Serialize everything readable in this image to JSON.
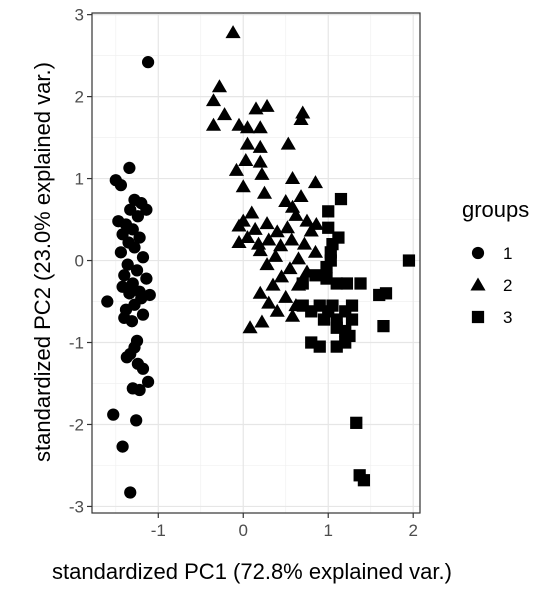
{
  "chart_data": {
    "type": "scatter",
    "xlabel": "standardized PC1 (72.8% explained var.)",
    "ylabel": "standardized PC2 (23.0% explained var.)",
    "xlim": [
      -1.78,
      2.08
    ],
    "ylim": [
      -3.08,
      3.02
    ],
    "x_ticks": [
      -1,
      0,
      1,
      2
    ],
    "y_ticks": [
      -3,
      -2,
      -1,
      0,
      1,
      2,
      3
    ],
    "x_tick_labels": [
      "-1",
      "0",
      "1",
      "2"
    ],
    "y_tick_labels": [
      "-3",
      "-2",
      "-1",
      "0",
      "1",
      "2",
      "3"
    ],
    "grid": true,
    "legend_title": "groups",
    "legend_position": "right",
    "series": [
      {
        "name": "1",
        "shape": "circle",
        "points": [
          [
            -1.12,
            2.42
          ],
          [
            -1.34,
            1.13
          ],
          [
            -1.5,
            0.98
          ],
          [
            -1.44,
            0.92
          ],
          [
            -1.28,
            0.74
          ],
          [
            -1.2,
            0.7
          ],
          [
            -1.33,
            0.62
          ],
          [
            -1.14,
            0.62
          ],
          [
            -1.24,
            0.54
          ],
          [
            -1.47,
            0.48
          ],
          [
            -1.38,
            0.44
          ],
          [
            -1.3,
            0.38
          ],
          [
            -1.42,
            0.32
          ],
          [
            -1.22,
            0.28
          ],
          [
            -1.35,
            0.22
          ],
          [
            -1.28,
            0.16
          ],
          [
            -1.44,
            0.1
          ],
          [
            -1.18,
            0.04
          ],
          [
            -1.36,
            -0.05
          ],
          [
            -1.25,
            -0.12
          ],
          [
            -1.4,
            -0.18
          ],
          [
            -1.14,
            -0.22
          ],
          [
            -1.3,
            -0.28
          ],
          [
            -1.42,
            -0.32
          ],
          [
            -1.22,
            -0.38
          ],
          [
            -1.34,
            -0.4
          ],
          [
            -1.1,
            -0.42
          ],
          [
            -1.2,
            -0.46
          ],
          [
            -1.6,
            -0.5
          ],
          [
            -1.28,
            -0.54
          ],
          [
            -1.38,
            -0.6
          ],
          [
            -1.18,
            -0.66
          ],
          [
            -1.31,
            -0.74
          ],
          [
            -1.4,
            -0.7
          ],
          [
            -1.25,
            -0.98
          ],
          [
            -1.28,
            -1.06
          ],
          [
            -1.33,
            -1.14
          ],
          [
            -1.37,
            -1.18
          ],
          [
            -1.24,
            -1.26
          ],
          [
            -1.18,
            -1.32
          ],
          [
            -1.12,
            -1.48
          ],
          [
            -1.3,
            -1.56
          ],
          [
            -1.22,
            -1.58
          ],
          [
            -1.53,
            -1.88
          ],
          [
            -1.26,
            -1.95
          ],
          [
            -1.42,
            -2.27
          ],
          [
            -1.33,
            -2.83
          ]
        ]
      },
      {
        "name": "2",
        "shape": "triangle",
        "points": [
          [
            -0.12,
            2.78
          ],
          [
            -0.28,
            2.12
          ],
          [
            -0.35,
            1.95
          ],
          [
            -0.22,
            1.78
          ],
          [
            0.15,
            1.85
          ],
          [
            0.28,
            1.88
          ],
          [
            0.7,
            1.8
          ],
          [
            0.68,
            1.72
          ],
          [
            -0.35,
            1.65
          ],
          [
            -0.05,
            1.65
          ],
          [
            0.05,
            1.62
          ],
          [
            0.2,
            1.62
          ],
          [
            0.53,
            1.42
          ],
          [
            0.05,
            1.42
          ],
          [
            0.2,
            1.38
          ],
          [
            0.03,
            1.22
          ],
          [
            0.2,
            1.2
          ],
          [
            -0.08,
            1.1
          ],
          [
            0.22,
            1.05
          ],
          [
            0.58,
            1.0
          ],
          [
            0.85,
            0.95
          ],
          [
            0.0,
            0.9
          ],
          [
            0.25,
            0.82
          ],
          [
            0.68,
            0.78
          ],
          [
            0.5,
            0.72
          ],
          [
            0.58,
            0.65
          ],
          [
            0.1,
            0.58
          ],
          [
            0.62,
            0.55
          ],
          [
            0.0,
            0.48
          ],
          [
            0.28,
            0.45
          ],
          [
            -0.05,
            0.42
          ],
          [
            0.52,
            0.4
          ],
          [
            0.75,
            0.48
          ],
          [
            0.86,
            0.44
          ],
          [
            0.14,
            0.38
          ],
          [
            0.4,
            0.35
          ],
          [
            0.8,
            0.36
          ],
          [
            0.05,
            0.28
          ],
          [
            0.3,
            0.25
          ],
          [
            0.57,
            0.25
          ],
          [
            -0.05,
            0.22
          ],
          [
            0.18,
            0.2
          ],
          [
            0.72,
            0.2
          ],
          [
            0.44,
            0.18
          ],
          [
            0.85,
            0.1
          ],
          [
            0.2,
            0.12
          ],
          [
            0.38,
            0.05
          ],
          [
            0.65,
            0.02
          ],
          [
            0.28,
            -0.05
          ],
          [
            0.55,
            -0.1
          ],
          [
            0.75,
            -0.14
          ],
          [
            0.45,
            -0.2
          ],
          [
            0.35,
            -0.3
          ],
          [
            0.65,
            -0.3
          ],
          [
            0.2,
            -0.4
          ],
          [
            0.5,
            -0.45
          ],
          [
            0.3,
            -0.52
          ],
          [
            0.62,
            -0.55
          ],
          [
            0.4,
            -0.62
          ],
          [
            0.58,
            -0.68
          ],
          [
            0.22,
            -0.75
          ],
          [
            0.08,
            -0.82
          ]
        ]
      },
      {
        "name": "3",
        "shape": "square",
        "points": [
          [
            1.15,
            0.75
          ],
          [
            1.0,
            0.6
          ],
          [
            1.0,
            0.4
          ],
          [
            1.12,
            0.28
          ],
          [
            1.05,
            0.2
          ],
          [
            1.03,
            0.1
          ],
          [
            1.03,
            0.0
          ],
          [
            0.98,
            -0.08
          ],
          [
            0.85,
            -0.18
          ],
          [
            0.98,
            -0.22
          ],
          [
            0.7,
            -0.28
          ],
          [
            1.1,
            -0.28
          ],
          [
            1.22,
            -0.28
          ],
          [
            1.38,
            -0.28
          ],
          [
            1.6,
            -0.42
          ],
          [
            1.68,
            -0.4
          ],
          [
            1.95,
            0.0
          ],
          [
            0.7,
            -0.55
          ],
          [
            0.9,
            -0.55
          ],
          [
            1.05,
            -0.55
          ],
          [
            1.28,
            -0.55
          ],
          [
            0.8,
            -0.62
          ],
          [
            1.0,
            -0.62
          ],
          [
            1.2,
            -0.62
          ],
          [
            0.95,
            -0.72
          ],
          [
            1.1,
            -0.72
          ],
          [
            1.28,
            -0.72
          ],
          [
            1.1,
            -0.82
          ],
          [
            1.2,
            -0.86
          ],
          [
            1.65,
            -0.8
          ],
          [
            1.25,
            -0.92
          ],
          [
            0.8,
            -1.0
          ],
          [
            0.9,
            -1.05
          ],
          [
            1.1,
            -1.05
          ],
          [
            1.2,
            -1.0
          ],
          [
            1.33,
            -1.98
          ],
          [
            1.37,
            -2.62
          ],
          [
            1.42,
            -2.68
          ]
        ]
      }
    ]
  }
}
